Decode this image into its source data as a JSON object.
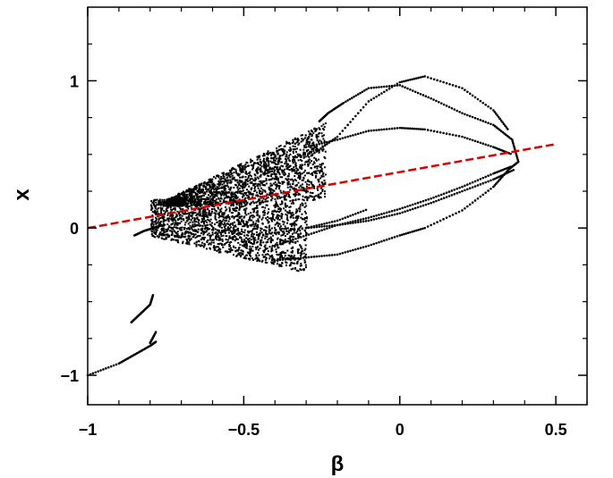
{
  "chart_data": {
    "type": "scatter",
    "title": "",
    "xlabel": "β",
    "ylabel": "x",
    "xlim": [
      -1,
      0.6
    ],
    "ylim": [
      -1.2,
      1.5
    ],
    "x_ticks": [
      -1,
      -0.5,
      0,
      0.5
    ],
    "x_tick_labels": [
      "−1",
      "−0.5",
      "0",
      "0.5"
    ],
    "y_ticks": [
      -1,
      0,
      1
    ],
    "y_tick_labels": [
      "−1",
      "0",
      "1"
    ],
    "grid": false,
    "legend": "none",
    "series": [
      {
        "color": "#000000",
        "style": "points",
        "segments": [
          {
            "x": [
              -1.0,
              -0.9,
              -0.85,
              -0.8,
              -0.78
            ],
            "y": [
              -1.0,
              -0.92,
              -0.86,
              -0.8,
              -0.77
            ]
          },
          {
            "x": [
              -0.86,
              -0.83,
              -0.8,
              -0.79
            ],
            "y": [
              -0.64,
              -0.58,
              -0.52,
              -0.45
            ]
          },
          {
            "x": [
              -0.8,
              -0.78
            ],
            "y": [
              -0.78,
              -0.7
            ]
          },
          {
            "x": [
              -0.85,
              -0.82,
              -0.79,
              -0.76
            ],
            "y": [
              -0.05,
              -0.02,
              0.0,
              0.02
            ]
          },
          {
            "x": [
              -0.4,
              -0.3,
              -0.2,
              -0.1,
              0.0,
              0.08,
              0.2,
              0.3,
              0.35,
              0.38,
              0.36,
              0.3,
              0.2,
              0.1,
              0.0,
              -0.1,
              -0.18,
              -0.23,
              -0.26
            ],
            "y": [
              -0.22,
              -0.2,
              -0.18,
              -0.12,
              -0.05,
              0.0,
              0.12,
              0.28,
              0.4,
              0.45,
              0.6,
              0.7,
              0.78,
              0.88,
              0.97,
              0.95,
              0.85,
              0.78,
              0.72
            ]
          },
          {
            "x": [
              -0.28,
              -0.2,
              -0.1,
              0.0,
              0.08,
              0.2,
              0.3,
              0.35
            ],
            "y": [
              0.5,
              0.62,
              0.86,
              0.99,
              1.03,
              0.95,
              0.8,
              0.66
            ]
          },
          {
            "x": [
              -0.3,
              -0.2,
              -0.1,
              0.0,
              0.08,
              0.2,
              0.3,
              0.36
            ],
            "y": [
              0.55,
              0.6,
              0.66,
              0.68,
              0.67,
              0.62,
              0.55,
              0.5
            ]
          },
          {
            "x": [
              -0.4,
              -0.3,
              -0.2,
              -0.1,
              0.0,
              0.1,
              0.2,
              0.3,
              0.36
            ],
            "y": [
              -0.12,
              -0.05,
              0.02,
              0.07,
              0.13,
              0.2,
              0.28,
              0.37,
              0.42
            ]
          },
          {
            "x": [
              -0.45,
              -0.3,
              -0.2,
              -0.1
            ],
            "y": [
              -0.05,
              0.0,
              0.05,
              0.13
            ]
          },
          {
            "x": [
              -0.3,
              -0.2,
              -0.1,
              0.0,
              0.1,
              0.2,
              0.3,
              0.37
            ],
            "y": [
              0.0,
              0.02,
              0.05,
              0.1,
              0.17,
              0.25,
              0.33,
              0.4
            ]
          }
        ]
      },
      {
        "color": "#000000",
        "style": "cloud",
        "regions": [
          {
            "x": [
              -0.75,
              -0.24
            ],
            "y_low": [
              0.15,
              0.2
            ],
            "y_high": [
              0.2,
              0.72
            ]
          },
          {
            "x": [
              -0.8,
              -0.3
            ],
            "y_low": [
              -0.05,
              -0.3
            ],
            "y_high": [
              0.2,
              0.18
            ]
          }
        ]
      },
      {
        "color": "#dd0000",
        "style": "dashed-line",
        "x": [
          -1.0,
          0.5
        ],
        "y": [
          0.0,
          0.57
        ]
      }
    ]
  }
}
